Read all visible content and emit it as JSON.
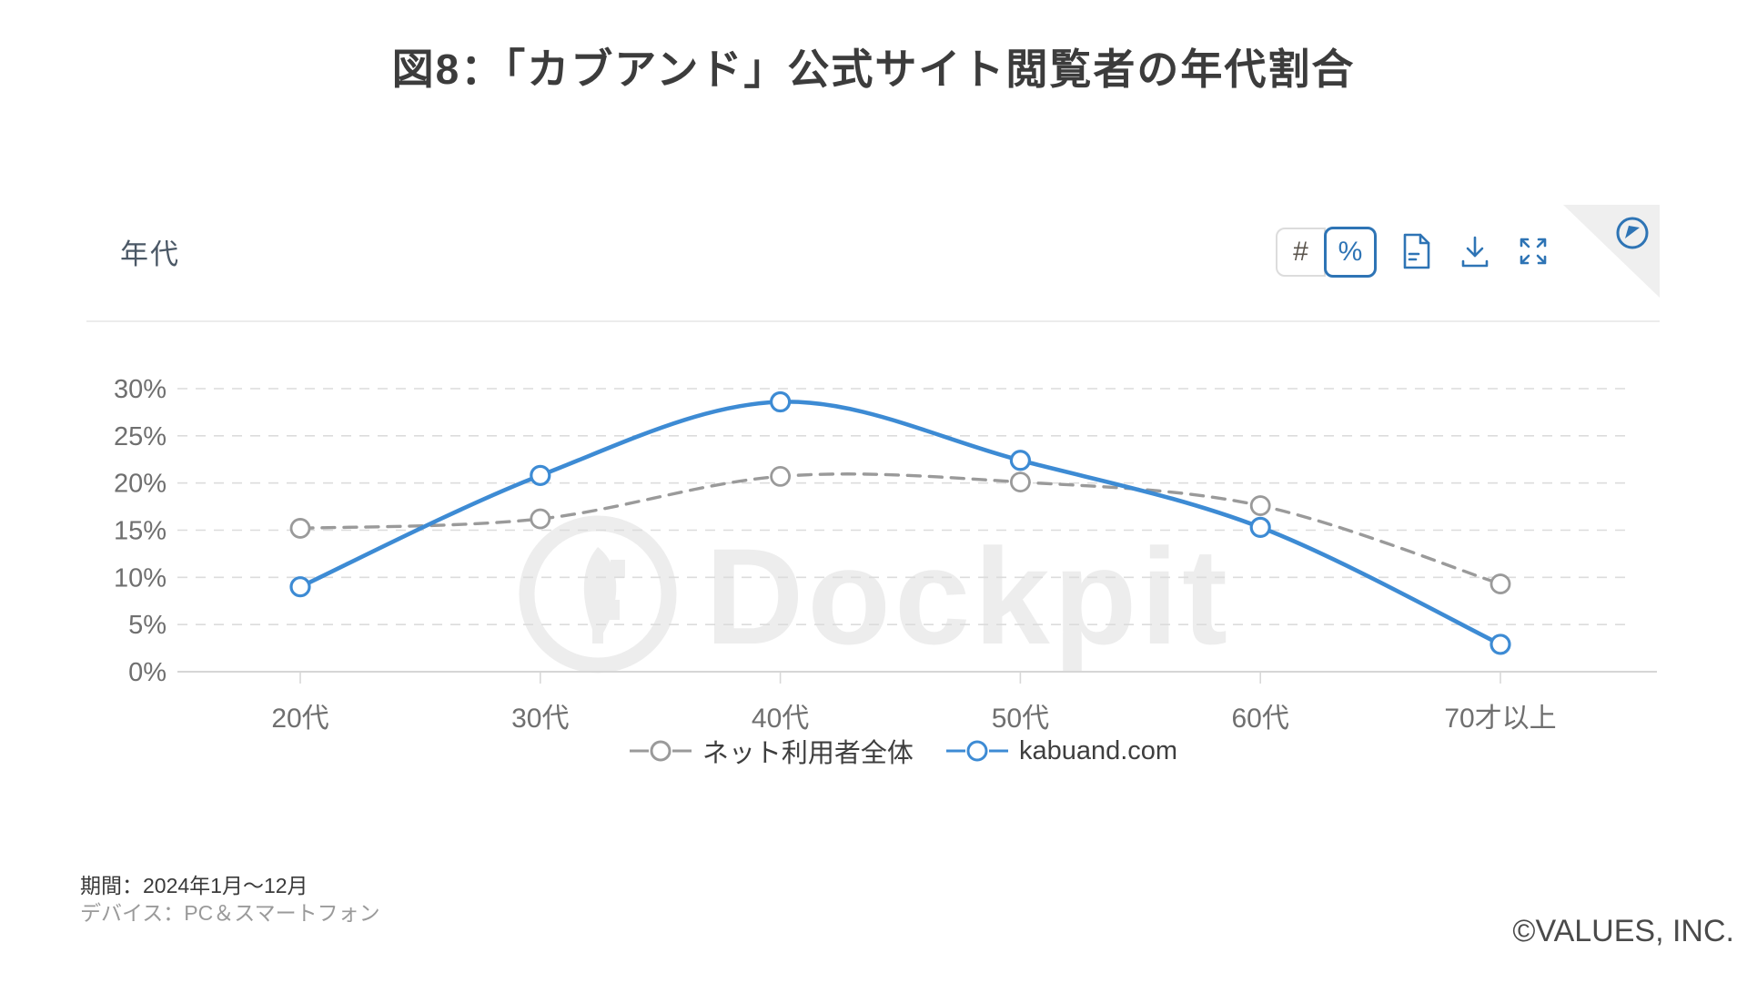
{
  "page": {
    "title": "図8：「カブアンド」公式サイト閲覧者の年代割合",
    "copyright": "©VALUES, INC."
  },
  "panel": {
    "title": "年代",
    "toolbar": {
      "count_toggle": "#",
      "percent_toggle": "%",
      "icons": [
        "report-icon",
        "download-icon",
        "fullscreen-icon",
        "navigate-icon"
      ],
      "accent_color": "#2e74b5"
    }
  },
  "chart_data": {
    "type": "line",
    "title": "年代",
    "categories": [
      "20代",
      "30代",
      "40代",
      "50代",
      "60代",
      "70才以上"
    ],
    "series": [
      {
        "name": "ネット利用者全体",
        "color": "#9a9a9a",
        "line_style": "dashed",
        "values": [
          15.2,
          16.2,
          20.7,
          20.1,
          17.6,
          9.3
        ]
      },
      {
        "name": "kabuand.com",
        "color": "#3d8bd4",
        "line_style": "solid",
        "values": [
          9.0,
          20.8,
          28.6,
          22.4,
          15.3,
          2.9
        ]
      }
    ],
    "xlabel": "",
    "ylabel": "",
    "ylim": [
      0,
      30
    ],
    "ytick_step": 5,
    "ytick_format": "percent",
    "grid": true,
    "legend_position": "bottom",
    "watermark": "Dockpit"
  },
  "footer": {
    "period": "期間：2024年1月～12月",
    "device": "デバイス：PC＆スマートフォン"
  }
}
